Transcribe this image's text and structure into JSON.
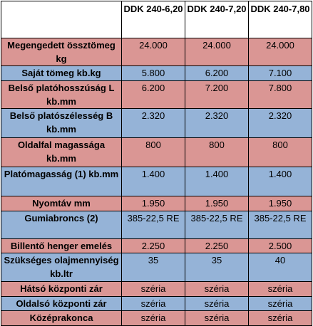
{
  "table": {
    "columns": [
      "DDK 240-6,20",
      "DDK 240-7,20",
      "DDK 240-7,80"
    ],
    "rows": [
      [
        "Megengedett össztömeg kg",
        "24.000",
        "24.000",
        "24.000"
      ],
      [
        "Saját tömeg kb.kg",
        "5.800",
        "6.200",
        "7.100"
      ],
      [
        "Belső platóhosszúság L kb.mm",
        "6.200",
        "7.200",
        "7.800"
      ],
      [
        "Belső platószélesség B kb.mm",
        "2.320",
        "2.320",
        "2.320"
      ],
      [
        "Oldalfal magassága kb.mm",
        "800",
        "800",
        "800"
      ],
      [
        "Platómagasság (1) kb.mm",
        "1.400",
        "1.400",
        "1.400"
      ],
      [
        "Nyomtáv mm",
        "1.950",
        "1.950",
        "1.950"
      ],
      [
        "Gumiabroncs (2)",
        "385-22,5 RE",
        "385-22,5 RE",
        "385-22,5 RE"
      ],
      [
        "Billentő henger emelés",
        "2.250",
        "2.250",
        "2.500"
      ],
      [
        "Szükséges olajmennyiség kb.ltr",
        "35",
        "35",
        "40"
      ],
      [
        "Hátsó központi zár",
        "széria",
        "széria",
        "széria"
      ],
      [
        "Oldalsó központi zár",
        "széria",
        "széria",
        "széria"
      ],
      [
        "Középrakonca",
        "széria",
        "széria",
        "széria"
      ]
    ]
  }
}
